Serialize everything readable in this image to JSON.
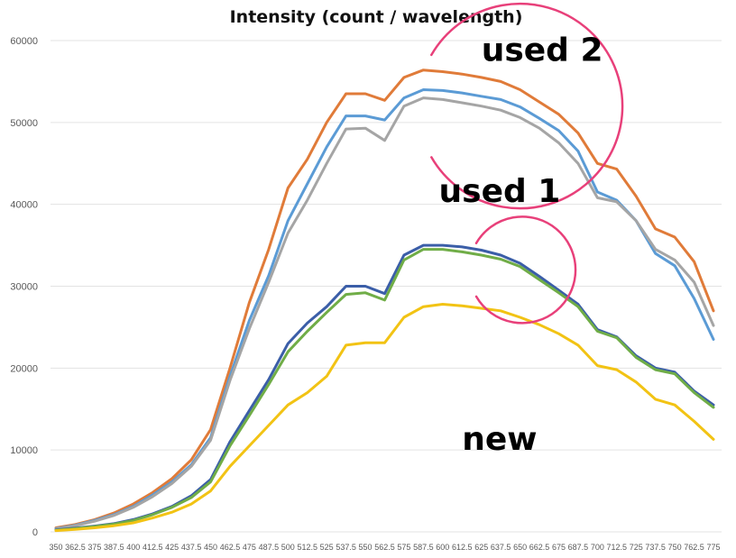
{
  "chart_data": {
    "type": "line",
    "title": "Intensity (count / wavelength)",
    "xlabel": "",
    "ylabel": "",
    "ylim": [
      0,
      60000
    ],
    "yticks": [
      0,
      10000,
      20000,
      30000,
      40000,
      50000,
      60000
    ],
    "ytick_labels": [
      "0",
      "10000",
      "20000",
      "30000",
      "40000",
      "50000",
      "60000"
    ],
    "x": [
      350,
      362.5,
      375,
      387.5,
      400,
      412.5,
      425,
      437.5,
      450,
      462.5,
      475,
      487.5,
      500,
      512.5,
      525,
      537.5,
      550,
      562.5,
      575,
      587.5,
      600,
      612.5,
      625,
      637.5,
      650,
      662.5,
      675,
      687.5,
      700,
      712.5,
      725,
      737.5,
      750,
      762.5,
      775
    ],
    "x_tick_labels": [
      "350",
      "362.5",
      "375",
      "387.5",
      "400",
      "412.5",
      "425",
      "437.5",
      "450",
      "462.5",
      "475",
      "487.5",
      "500",
      "512.5",
      "525",
      "537.5",
      "550",
      "562.5",
      "575",
      "587.5",
      "600",
      "612.5",
      "625",
      "637.5",
      "650",
      "662.5",
      "675",
      "687.5",
      "700",
      "712.5",
      "725",
      "737.5",
      "750",
      "762.5",
      "775"
    ],
    "grid": true,
    "legend": "none",
    "series": [
      {
        "color": "#e07b39",
        "values": [
          500,
          900,
          1500,
          2300,
          3400,
          4800,
          6500,
          8800,
          12500,
          20000,
          28000,
          34500,
          42000,
          45500,
          50000,
          53500,
          53500,
          52700,
          55500,
          56400,
          56200,
          55900,
          55500,
          55000,
          54000,
          52500,
          51000,
          48700,
          45000,
          44300,
          41000,
          37000,
          36000,
          33000,
          27000
        ]
      },
      {
        "color": "#5b9bd5",
        "values": [
          400,
          800,
          1400,
          2100,
          3100,
          4500,
          6100,
          8200,
          11500,
          19000,
          25800,
          31300,
          38000,
          42500,
          47000,
          50800,
          50800,
          50300,
          53000,
          54000,
          53900,
          53600,
          53200,
          52800,
          51900,
          50500,
          49000,
          46500,
          41500,
          40500,
          38000,
          34000,
          32500,
          28500,
          23500
        ]
      },
      {
        "color": "#a5a5a5",
        "values": [
          350,
          750,
          1300,
          2000,
          3000,
          4300,
          5900,
          8000,
          11200,
          18500,
          24800,
          30500,
          36500,
          40500,
          45000,
          49200,
          49300,
          47800,
          52000,
          53000,
          52800,
          52400,
          52000,
          51500,
          50600,
          49300,
          47500,
          45000,
          40800,
          40300,
          38000,
          34500,
          33200,
          30500,
          25200
        ]
      },
      {
        "color": "#3b5ea8",
        "values": [
          250,
          450,
          700,
          1000,
          1500,
          2200,
          3100,
          4400,
          6400,
          11000,
          14800,
          18600,
          23000,
          25500,
          27500,
          30000,
          30000,
          29100,
          33800,
          35000,
          35000,
          34800,
          34400,
          33800,
          32800,
          31200,
          29500,
          27800,
          24700,
          23800,
          21500,
          20000,
          19500,
          17200,
          15500
        ]
      },
      {
        "color": "#70ad47",
        "values": [
          200,
          400,
          650,
          950,
          1400,
          2100,
          3000,
          4200,
          6100,
          10500,
          14200,
          18000,
          22000,
          24500,
          26800,
          29000,
          29200,
          28300,
          33200,
          34500,
          34500,
          34200,
          33800,
          33300,
          32400,
          30800,
          29200,
          27500,
          24500,
          23700,
          21300,
          19800,
          19300,
          17000,
          15200
        ]
      },
      {
        "color": "#f2c314",
        "values": [
          150,
          300,
          500,
          750,
          1100,
          1700,
          2400,
          3400,
          5000,
          8000,
          10500,
          13000,
          15500,
          17000,
          19000,
          22800,
          23100,
          23100,
          26200,
          27500,
          27800,
          27600,
          27300,
          27000,
          26200,
          25300,
          24200,
          22800,
          20300,
          19800,
          18300,
          16200,
          15500,
          13500,
          11300
        ]
      }
    ],
    "annotations": [
      {
        "text": "used 2",
        "anchor_x": 625,
        "anchor_y": 57500
      },
      {
        "text": "used 1",
        "anchor_x": 597.5,
        "anchor_y": 40300
      },
      {
        "text": "new",
        "anchor_x": 612.5,
        "anchor_y": 10000
      }
    ],
    "highlight_circles": [
      {
        "cx": 650,
        "cy": 52000,
        "r": 12500,
        "gap": "left"
      },
      {
        "cx": 651.5,
        "cy": 32000,
        "r": 6500,
        "gap": "left"
      }
    ],
    "colors": {
      "highlight": "#e8407a",
      "grid": "#e3e3e3",
      "tick_text": "#595959"
    }
  }
}
